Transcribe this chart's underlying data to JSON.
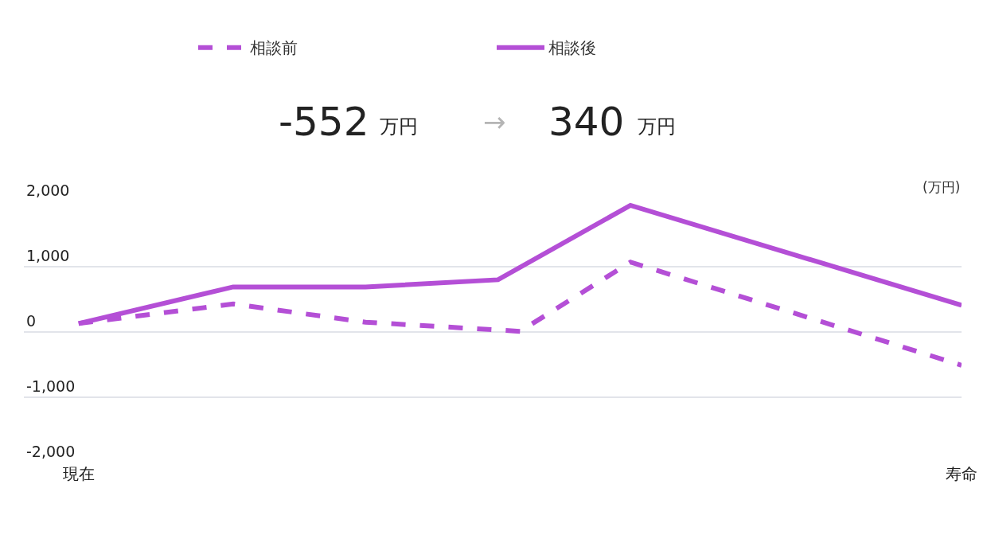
{
  "chart_data": {
    "type": "line",
    "ylabel": "(万円)",
    "annotations": [
      "-552",
      "万円",
      "→",
      "340",
      "万円"
    ],
    "categories": [
      "現在",
      null,
      null,
      null,
      null,
      null,
      null,
      null,
      null,
      null,
      null,
      null,
      null,
      null,
      null,
      null,
      null,
      null,
      null,
      null,
      null,
      null,
      null,
      null,
      null,
      null,
      null,
      null,
      null,
      null,
      null,
      null,
      null,
      null,
      null,
      null,
      null,
      null,
      null,
      null,
      "寿命"
    ],
    "series": [
      {
        "name": "相談前",
        "color": "#b44fd6",
        "line_style": "dashed",
        "values": [
          130,
          null,
          null,
          null,
          null,
          null,
          null,
          430,
          null,
          null,
          null,
          null,
          null,
          150,
          null,
          null,
          null,
          null,
          null,
          null,
          10,
          null,
          null,
          null,
          null,
          1070,
          null,
          null,
          null,
          null,
          null,
          null,
          null,
          null,
          null,
          null,
          null,
          null,
          null,
          null,
          -510
        ]
      },
      {
        "name": "相談後",
        "color": "#b44fd6",
        "line_style": "solid",
        "values": [
          130,
          null,
          null,
          null,
          null,
          null,
          null,
          690,
          null,
          null,
          null,
          null,
          null,
          690,
          null,
          null,
          null,
          null,
          null,
          800,
          null,
          null,
          null,
          null,
          null,
          1940,
          null,
          null,
          null,
          null,
          null,
          null,
          null,
          null,
          null,
          null,
          null,
          null,
          null,
          null,
          410
        ]
      }
    ],
    "ylim": [
      -2000,
      2000
    ],
    "yticks": [
      {
        "value": 2000,
        "label": "2,000"
      },
      {
        "value": 1000,
        "label": "1,000"
      },
      0,
      {
        "value": -1000,
        "label": "-1,000"
      },
      {
        "value": -2000,
        "label": "-2,000"
      }
    ],
    "grid": "y",
    "legend": "top",
    "marker": "none"
  }
}
